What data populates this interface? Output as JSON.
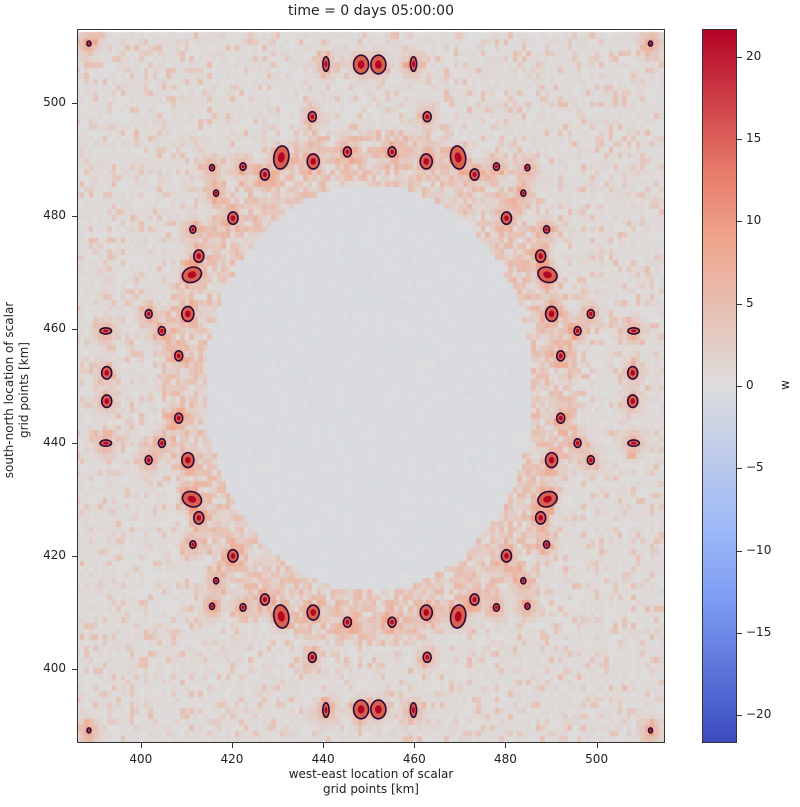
{
  "chart_data": {
    "type": "heatmap",
    "title": "time = 0 days 05:00:00",
    "xlabel": [
      "west-east location of scalar",
      "grid points [km]"
    ],
    "ylabel": [
      "south-north location of scalar",
      "grid points [km]"
    ],
    "xlim": [
      386,
      515
    ],
    "ylim": [
      387,
      513
    ],
    "xticks": [
      400,
      420,
      440,
      460,
      480,
      500
    ],
    "yticks": [
      400,
      420,
      440,
      460,
      480,
      500
    ],
    "colorbar": {
      "label": "w",
      "colormap": "coolwarm",
      "range": [
        -21.7,
        21.7
      ],
      "ticks": [
        20,
        15,
        10,
        5,
        0,
        -5,
        -10,
        -15,
        -20
      ],
      "tick_labels": [
        "20",
        "15",
        "10",
        "5",
        "0",
        "−5",
        "−10",
        "−15",
        "−20"
      ]
    },
    "contour_color": "#2a0a3a",
    "symmetry_center": [
      450,
      450
    ],
    "updraft_cells_upper_left_quadrant": [
      {
        "x": 388.4,
        "y": 510.6,
        "w": 20,
        "r": 0.4
      },
      {
        "x": 440.4,
        "y": 507.0,
        "w": 20,
        "r": 0.5,
        "elong": [
          0,
          1.5
        ]
      },
      {
        "x": 448.1,
        "y": 506.9,
        "w": 18,
        "r": 1.5
      },
      {
        "x": 437.4,
        "y": 497.7,
        "w": 16,
        "r": 0.8
      },
      {
        "x": 445.1,
        "y": 491.5,
        "w": 15,
        "r": 0.8
      },
      {
        "x": 430.6,
        "y": 490.5,
        "w": 21,
        "r": 1.2,
        "elong": [
          0.6,
          3
        ]
      },
      {
        "x": 437.6,
        "y": 489.8,
        "w": 15,
        "r": 1.2
      },
      {
        "x": 427.0,
        "y": 487.5,
        "w": 15,
        "r": 0.9
      },
      {
        "x": 422.2,
        "y": 488.9,
        "w": 18,
        "r": 0.6
      },
      {
        "x": 415.4,
        "y": 488.7,
        "w": 18,
        "r": 0.5
      },
      {
        "x": 416.3,
        "y": 484.2,
        "w": 18,
        "r": 0.5
      },
      {
        "x": 420.0,
        "y": 479.8,
        "w": 15,
        "r": 1.0
      },
      {
        "x": 411.2,
        "y": 477.8,
        "w": 18,
        "r": 0.6
      },
      {
        "x": 412.5,
        "y": 473.1,
        "w": 15,
        "r": 1.0
      },
      {
        "x": 411.0,
        "y": 469.8,
        "w": 20,
        "r": 1.2,
        "elong": [
          2.8,
          0.8
        ]
      },
      {
        "x": 401.5,
        "y": 462.9,
        "w": 16,
        "r": 0.7
      },
      {
        "x": 410.1,
        "y": 462.9,
        "w": 15,
        "r": 1.2
      },
      {
        "x": 404.4,
        "y": 459.9,
        "w": 16,
        "r": 0.7
      },
      {
        "x": 392.1,
        "y": 459.9,
        "w": 20,
        "r": 0.5,
        "elong": [
          1.2,
          0
        ]
      },
      {
        "x": 392.3,
        "y": 452.5,
        "w": 15,
        "r": 1.0
      },
      {
        "x": 408.1,
        "y": 455.5,
        "w": 15,
        "r": 0.8
      }
    ]
  }
}
